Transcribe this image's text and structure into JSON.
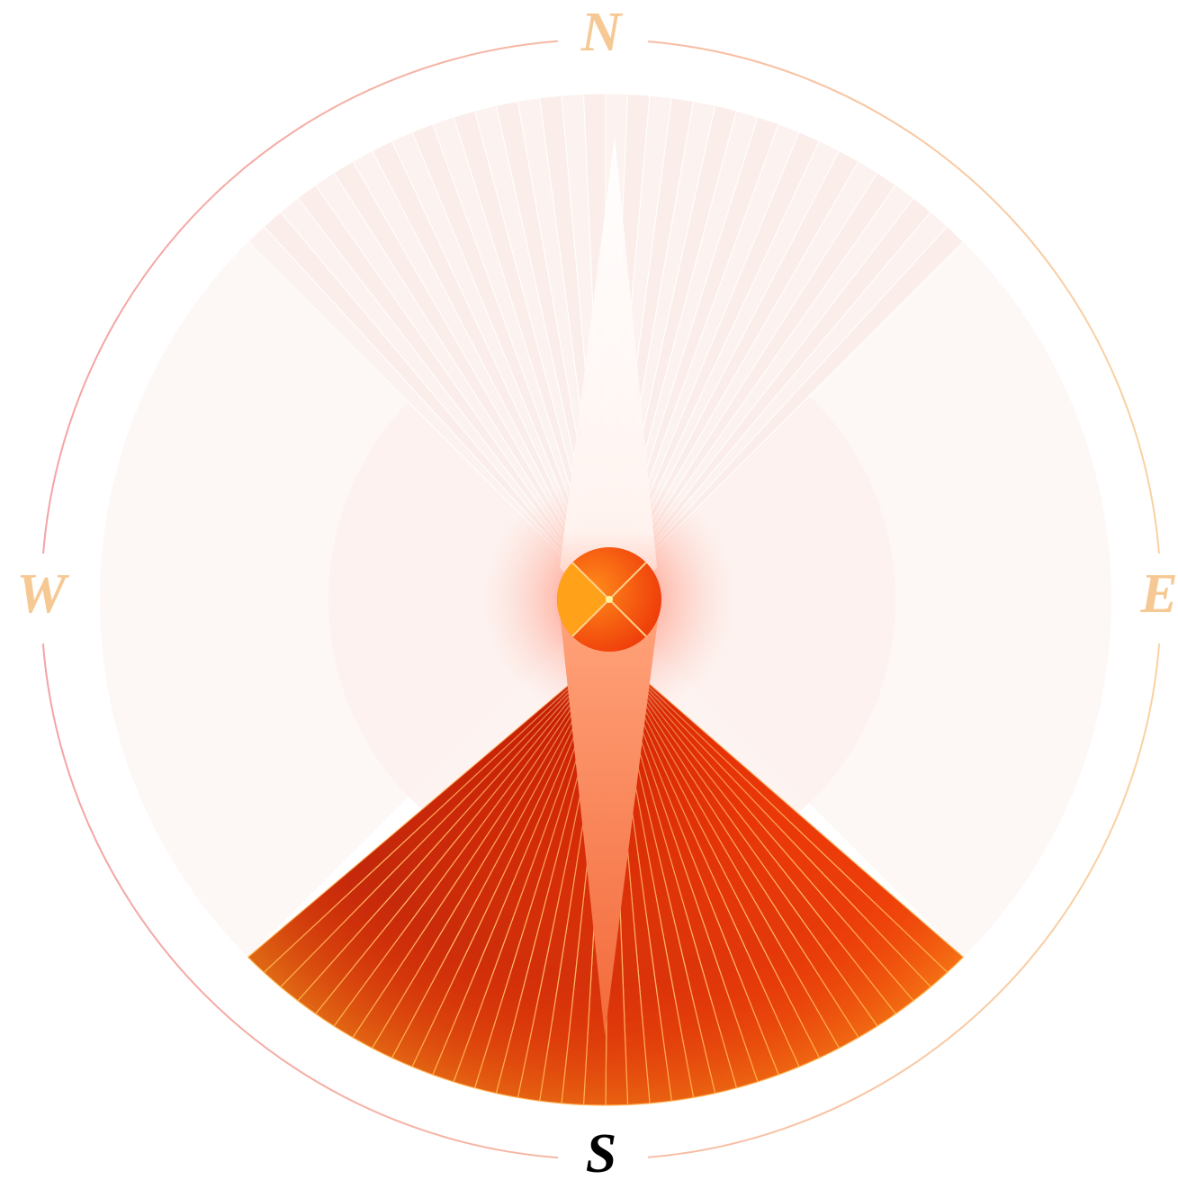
{
  "compass": {
    "north": "N",
    "east": "E",
    "south": "S",
    "west": "W"
  }
}
